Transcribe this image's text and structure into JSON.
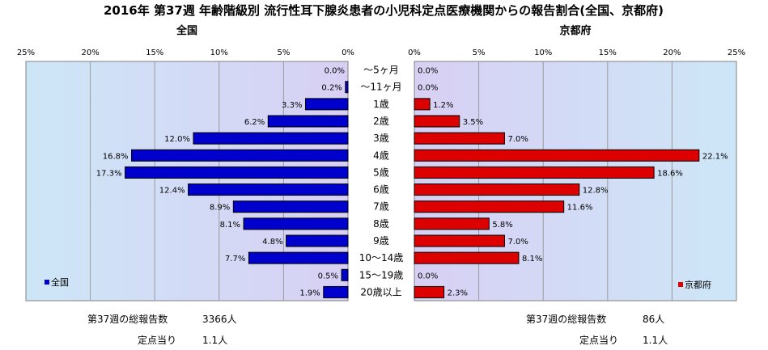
{
  "title": "2016年 第37週 年齢階級別 流行性耳下腺炎患者の小児科定点医療機関からの報告割合(全国、京都府)",
  "chart_data": {
    "type": "bar",
    "orientation": "horizontal",
    "layout": "butterfly",
    "categories": [
      "～5ヶ月",
      "～11ヶ月",
      "1歳",
      "2歳",
      "3歳",
      "4歳",
      "5歳",
      "6歳",
      "7歳",
      "8歳",
      "9歳",
      "10～14歳",
      "15～19歳",
      "20歳以上"
    ],
    "xlim": [
      0,
      25
    ],
    "x_ticks": [
      "25%",
      "20%",
      "15%",
      "10%",
      "5%",
      "0%"
    ],
    "x_ticks_right": [
      "0%",
      "5%",
      "10%",
      "15%",
      "20%",
      "25%"
    ],
    "grid": true,
    "series": [
      {
        "name": "全国",
        "subtitle": "全国",
        "side": "left",
        "color": "#0000cc",
        "legend_position": "bottom-left",
        "values": [
          0.0,
          0.2,
          3.3,
          6.2,
          12.0,
          16.8,
          17.3,
          12.4,
          8.9,
          8.1,
          4.8,
          7.7,
          0.5,
          1.9
        ],
        "labels": [
          "0.0%",
          "0.2%",
          "3.3%",
          "6.2%",
          "12.0%",
          "16.8%",
          "17.3%",
          "12.4%",
          "8.9%",
          "8.1%",
          "4.8%",
          "7.7%",
          "0.5%",
          "1.9%"
        ]
      },
      {
        "name": "京都府",
        "subtitle": "京都府",
        "side": "right",
        "color": "#dd0000",
        "legend_position": "bottom-right",
        "values": [
          0.0,
          0.0,
          1.2,
          3.5,
          7.0,
          22.1,
          18.6,
          12.8,
          11.6,
          5.8,
          7.0,
          8.1,
          0.0,
          2.3
        ],
        "labels": [
          "0.0%",
          "0.0%",
          "1.2%",
          "3.5%",
          "7.0%",
          "22.1%",
          "18.6%",
          "12.8%",
          "11.6%",
          "5.8%",
          "7.0%",
          "8.1%",
          "0.0%",
          "2.3%"
        ]
      }
    ]
  },
  "footer": {
    "left": {
      "total_label": "第37週の総報告数",
      "total_value": "3366人",
      "per_label": "定点当り",
      "per_value": "1.1人"
    },
    "right": {
      "total_label": "第37週の総報告数",
      "total_value": "86人",
      "per_label": "定点当り",
      "per_value": "1.1人"
    }
  }
}
